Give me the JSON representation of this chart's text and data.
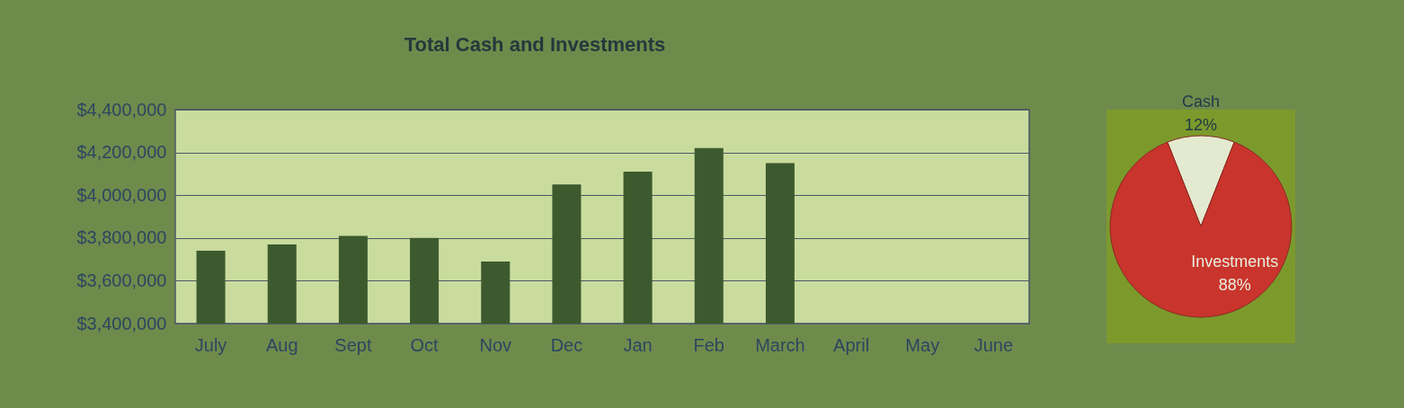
{
  "chart_data": [
    {
      "type": "bar",
      "title": "Total Cash and Investments",
      "categories": [
        "July",
        "Aug",
        "Sept",
        "Oct",
        "Nov",
        "Dec",
        "Jan",
        "Feb",
        "March",
        "April",
        "May",
        "June"
      ],
      "values": [
        3740000,
        3770000,
        3810000,
        3800000,
        3690000,
        4050000,
        4110000,
        4220000,
        4150000,
        null,
        null,
        null
      ],
      "color": "#3d5a2e",
      "ylim": [
        3400000,
        4400000
      ],
      "yticks": [
        {
          "value": 3400000,
          "label": "$3,400,000"
        },
        {
          "value": 3600000,
          "label": "$3,600,000"
        },
        {
          "value": 3800000,
          "label": "$3,800,000"
        },
        {
          "value": 4000000,
          "label": "$4,000,000"
        },
        {
          "value": 4200000,
          "label": "$4,200,000"
        },
        {
          "value": 4400000,
          "label": "$4,400,000"
        }
      ],
      "grid": "y"
    },
    {
      "type": "pie",
      "categories": [
        "Cash",
        "Investments"
      ],
      "values": [
        12,
        88
      ],
      "colors": [
        "#e4ead0",
        "#c9342c"
      ],
      "value_labels": [
        "12%",
        "88%"
      ]
    }
  ]
}
